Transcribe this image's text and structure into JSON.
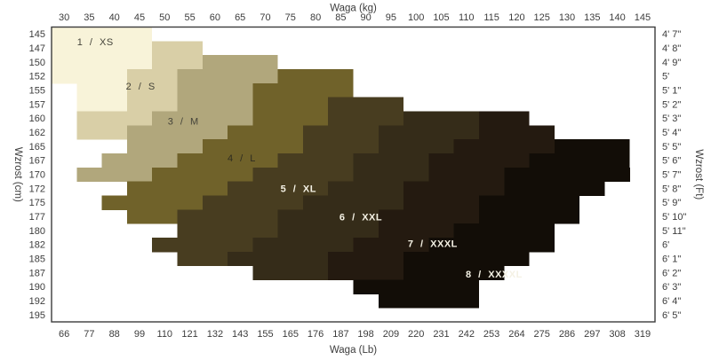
{
  "chart_data": {
    "type": "area",
    "description": "Size chart mapping body height vs weight to suit sizes 1/XS through 8/XXXXL, drawn as stair-stepped filled bands",
    "axes": {
      "top": {
        "title": "Waga  (kg)",
        "ticks": [
          30,
          35,
          40,
          45,
          50,
          55,
          60,
          65,
          70,
          75,
          80,
          85,
          90,
          95,
          100,
          105,
          110,
          115,
          120,
          125,
          130,
          135,
          140,
          145
        ]
      },
      "bottom": {
        "title": "Waga  (Lb)",
        "ticks": [
          66,
          77,
          88,
          99,
          110,
          121,
          132,
          143,
          155,
          165,
          176,
          187,
          198,
          209,
          220,
          231,
          242,
          253,
          264,
          275,
          286,
          297,
          308,
          319
        ]
      },
      "left": {
        "title": "Wzrost  (cm)",
        "ticks": [
          145,
          147,
          150,
          152,
          155,
          157,
          160,
          162,
          165,
          167,
          170,
          172,
          175,
          177,
          180,
          182,
          185,
          187,
          190,
          192,
          195
        ]
      },
      "right": {
        "title": "Wzrost  (Ft)",
        "ticks": [
          "4' 7\"",
          "4' 8\"",
          "4' 9\"",
          "5'",
          "5' 1\"",
          "5' 2\"",
          "5' 3\"",
          "5' 4\"",
          "5' 5\"",
          "5' 6\"",
          "5' 7\"",
          "5' 8\"",
          "5' 9\"",
          "5' 10\"",
          "5' 11\"",
          "6'",
          "6' 1\"",
          "6' 2\"",
          "6' 3\"",
          "6' 4\"",
          "6' 5\""
        ]
      }
    },
    "weight_domain_kg": [
      27.5,
      147.5
    ],
    "height_rows_cm": [
      145,
      147,
      150,
      152,
      155,
      157,
      160,
      162,
      165,
      167,
      170,
      172,
      175,
      177,
      180,
      182,
      185,
      187,
      190,
      192,
      195
    ],
    "border_color": "#3c3c3c",
    "background": "#ffffff",
    "sizes": [
      {
        "index": "1",
        "code": "XS",
        "label": "1 / XS",
        "color": "#f8f3d9",
        "label_color": "#45443a",
        "label_bold": false,
        "label_pos": {
          "kg": 36.2,
          "row": 0.55
        },
        "cells": [
          [
            0,
            27.5,
            47.5
          ],
          [
            1,
            27.5,
            47.5
          ],
          [
            2,
            27.5,
            47.5
          ],
          [
            3,
            27.5,
            42.5
          ],
          [
            4,
            32.5,
            42.5
          ],
          [
            5,
            32.5,
            42.5
          ]
        ]
      },
      {
        "index": "2",
        "code": "S",
        "label": "2 / S",
        "color": "#d9cfa7",
        "label_color": "#45443a",
        "label_bold": false,
        "label_pos": {
          "kg": 45.2,
          "row": 3.7
        },
        "cells": [
          [
            1,
            47.5,
            57.5
          ],
          [
            2,
            47.5,
            57.5
          ],
          [
            3,
            42.5,
            52.5
          ],
          [
            4,
            42.5,
            52.5
          ],
          [
            5,
            42.5,
            52.5
          ],
          [
            6,
            32.5,
            47.5
          ],
          [
            7,
            32.5,
            42.5
          ]
        ]
      },
      {
        "index": "3",
        "code": "M",
        "label": "3 / M",
        "color": "#b1a77c",
        "label_color": "#45443a",
        "label_bold": false,
        "label_pos": {
          "kg": 53.7,
          "row": 6.2
        },
        "cells": [
          [
            2,
            57.5,
            72.5
          ],
          [
            3,
            52.5,
            72.5
          ],
          [
            4,
            52.5,
            67.5
          ],
          [
            5,
            52.5,
            67.5
          ],
          [
            6,
            47.5,
            67.5
          ],
          [
            7,
            42.5,
            62.5
          ],
          [
            8,
            42.5,
            57.5
          ],
          [
            9,
            37.5,
            52.5
          ],
          [
            10,
            32.5,
            47.5
          ]
        ]
      },
      {
        "index": "4",
        "code": "L",
        "label": "4 / L",
        "color": "#70622a",
        "label_color": "#2e2c20",
        "label_bold": false,
        "label_pos": {
          "kg": 65.3,
          "row": 8.8
        },
        "cells": [
          [
            3,
            72.5,
            87.5
          ],
          [
            4,
            67.5,
            87.5
          ],
          [
            5,
            67.5,
            82.5
          ],
          [
            6,
            67.5,
            82.5
          ],
          [
            7,
            62.5,
            77.5
          ],
          [
            8,
            57.5,
            77.5
          ],
          [
            9,
            52.5,
            72.5
          ],
          [
            10,
            47.5,
            67.5
          ],
          [
            11,
            42.5,
            62.5
          ],
          [
            12,
            37.5,
            57.5
          ],
          [
            13,
            42.5,
            52.5
          ]
        ]
      },
      {
        "index": "5",
        "code": "XL",
        "label": "5 / XL",
        "color": "#483d20",
        "label_color": "#f4f1e4",
        "label_bold": true,
        "label_pos": {
          "kg": 76.6,
          "row": 11.0
        },
        "cells": [
          [
            5,
            82.5,
            97.5
          ],
          [
            6,
            82.5,
            97.5
          ],
          [
            7,
            77.5,
            92.5
          ],
          [
            8,
            77.5,
            92.5
          ],
          [
            9,
            72.5,
            87.5
          ],
          [
            10,
            67.5,
            87.5
          ],
          [
            11,
            62.5,
            82.5
          ],
          [
            12,
            57.5,
            77.5
          ],
          [
            13,
            52.5,
            72.5
          ],
          [
            14,
            52.5,
            72.5
          ],
          [
            15,
            47.5,
            67.5
          ],
          [
            16,
            52.5,
            62.5
          ]
        ]
      },
      {
        "index": "6",
        "code": "XXL",
        "label": "6 / XXL",
        "color": "#352c19",
        "label_color": "#f4f1e4",
        "label_bold": true,
        "label_pos": {
          "kg": 89.0,
          "row": 13.0
        },
        "cells": [
          [
            6,
            97.5,
            112.5
          ],
          [
            7,
            92.5,
            112.5
          ],
          [
            8,
            92.5,
            107.5
          ],
          [
            9,
            87.5,
            102.5
          ],
          [
            10,
            87.5,
            102.5
          ],
          [
            11,
            82.5,
            97.5
          ],
          [
            12,
            77.5,
            97.5
          ],
          [
            13,
            72.5,
            92.5
          ],
          [
            14,
            72.5,
            92.5
          ],
          [
            15,
            67.5,
            87.5
          ],
          [
            16,
            62.5,
            82.5
          ],
          [
            17,
            67.5,
            82.5
          ]
        ]
      },
      {
        "index": "7",
        "code": "XXXL",
        "label": "7 / XXXL",
        "color": "#241a10",
        "label_color": "#f4f1e4",
        "label_bold": true,
        "label_pos": {
          "kg": 103.3,
          "row": 14.9
        },
        "cells": [
          [
            6,
            112.5,
            122.5
          ],
          [
            7,
            112.5,
            127.5
          ],
          [
            8,
            107.5,
            127.5
          ],
          [
            9,
            102.5,
            122.5
          ],
          [
            10,
            102.5,
            117.5
          ],
          [
            11,
            97.5,
            117.5
          ],
          [
            12,
            97.5,
            112.5
          ],
          [
            13,
            92.5,
            112.5
          ],
          [
            14,
            92.5,
            107.5
          ],
          [
            15,
            87.5,
            102.5
          ],
          [
            16,
            82.5,
            97.5
          ],
          [
            17,
            82.5,
            97.5
          ]
        ]
      },
      {
        "index": "8",
        "code": "XXXXL",
        "label": "8 / XXXXL",
        "color": "#120d07",
        "label_color": "#f4f1e4",
        "label_bold": true,
        "label_pos": {
          "kg": 115.5,
          "row": 17.1
        },
        "cells": [
          [
            8,
            127.5,
            142.5
          ],
          [
            9,
            122.5,
            142.5
          ],
          [
            10,
            117.5,
            142.5
          ],
          [
            11,
            117.5,
            137.5
          ],
          [
            12,
            112.5,
            132.5
          ],
          [
            13,
            112.5,
            132.5
          ],
          [
            14,
            107.5,
            127.5
          ],
          [
            15,
            102.5,
            127.5
          ],
          [
            16,
            97.5,
            122.5
          ],
          [
            17,
            97.5,
            117.5
          ],
          [
            18,
            87.5,
            112.5
          ],
          [
            19,
            92.5,
            112.5
          ]
        ]
      }
    ]
  }
}
